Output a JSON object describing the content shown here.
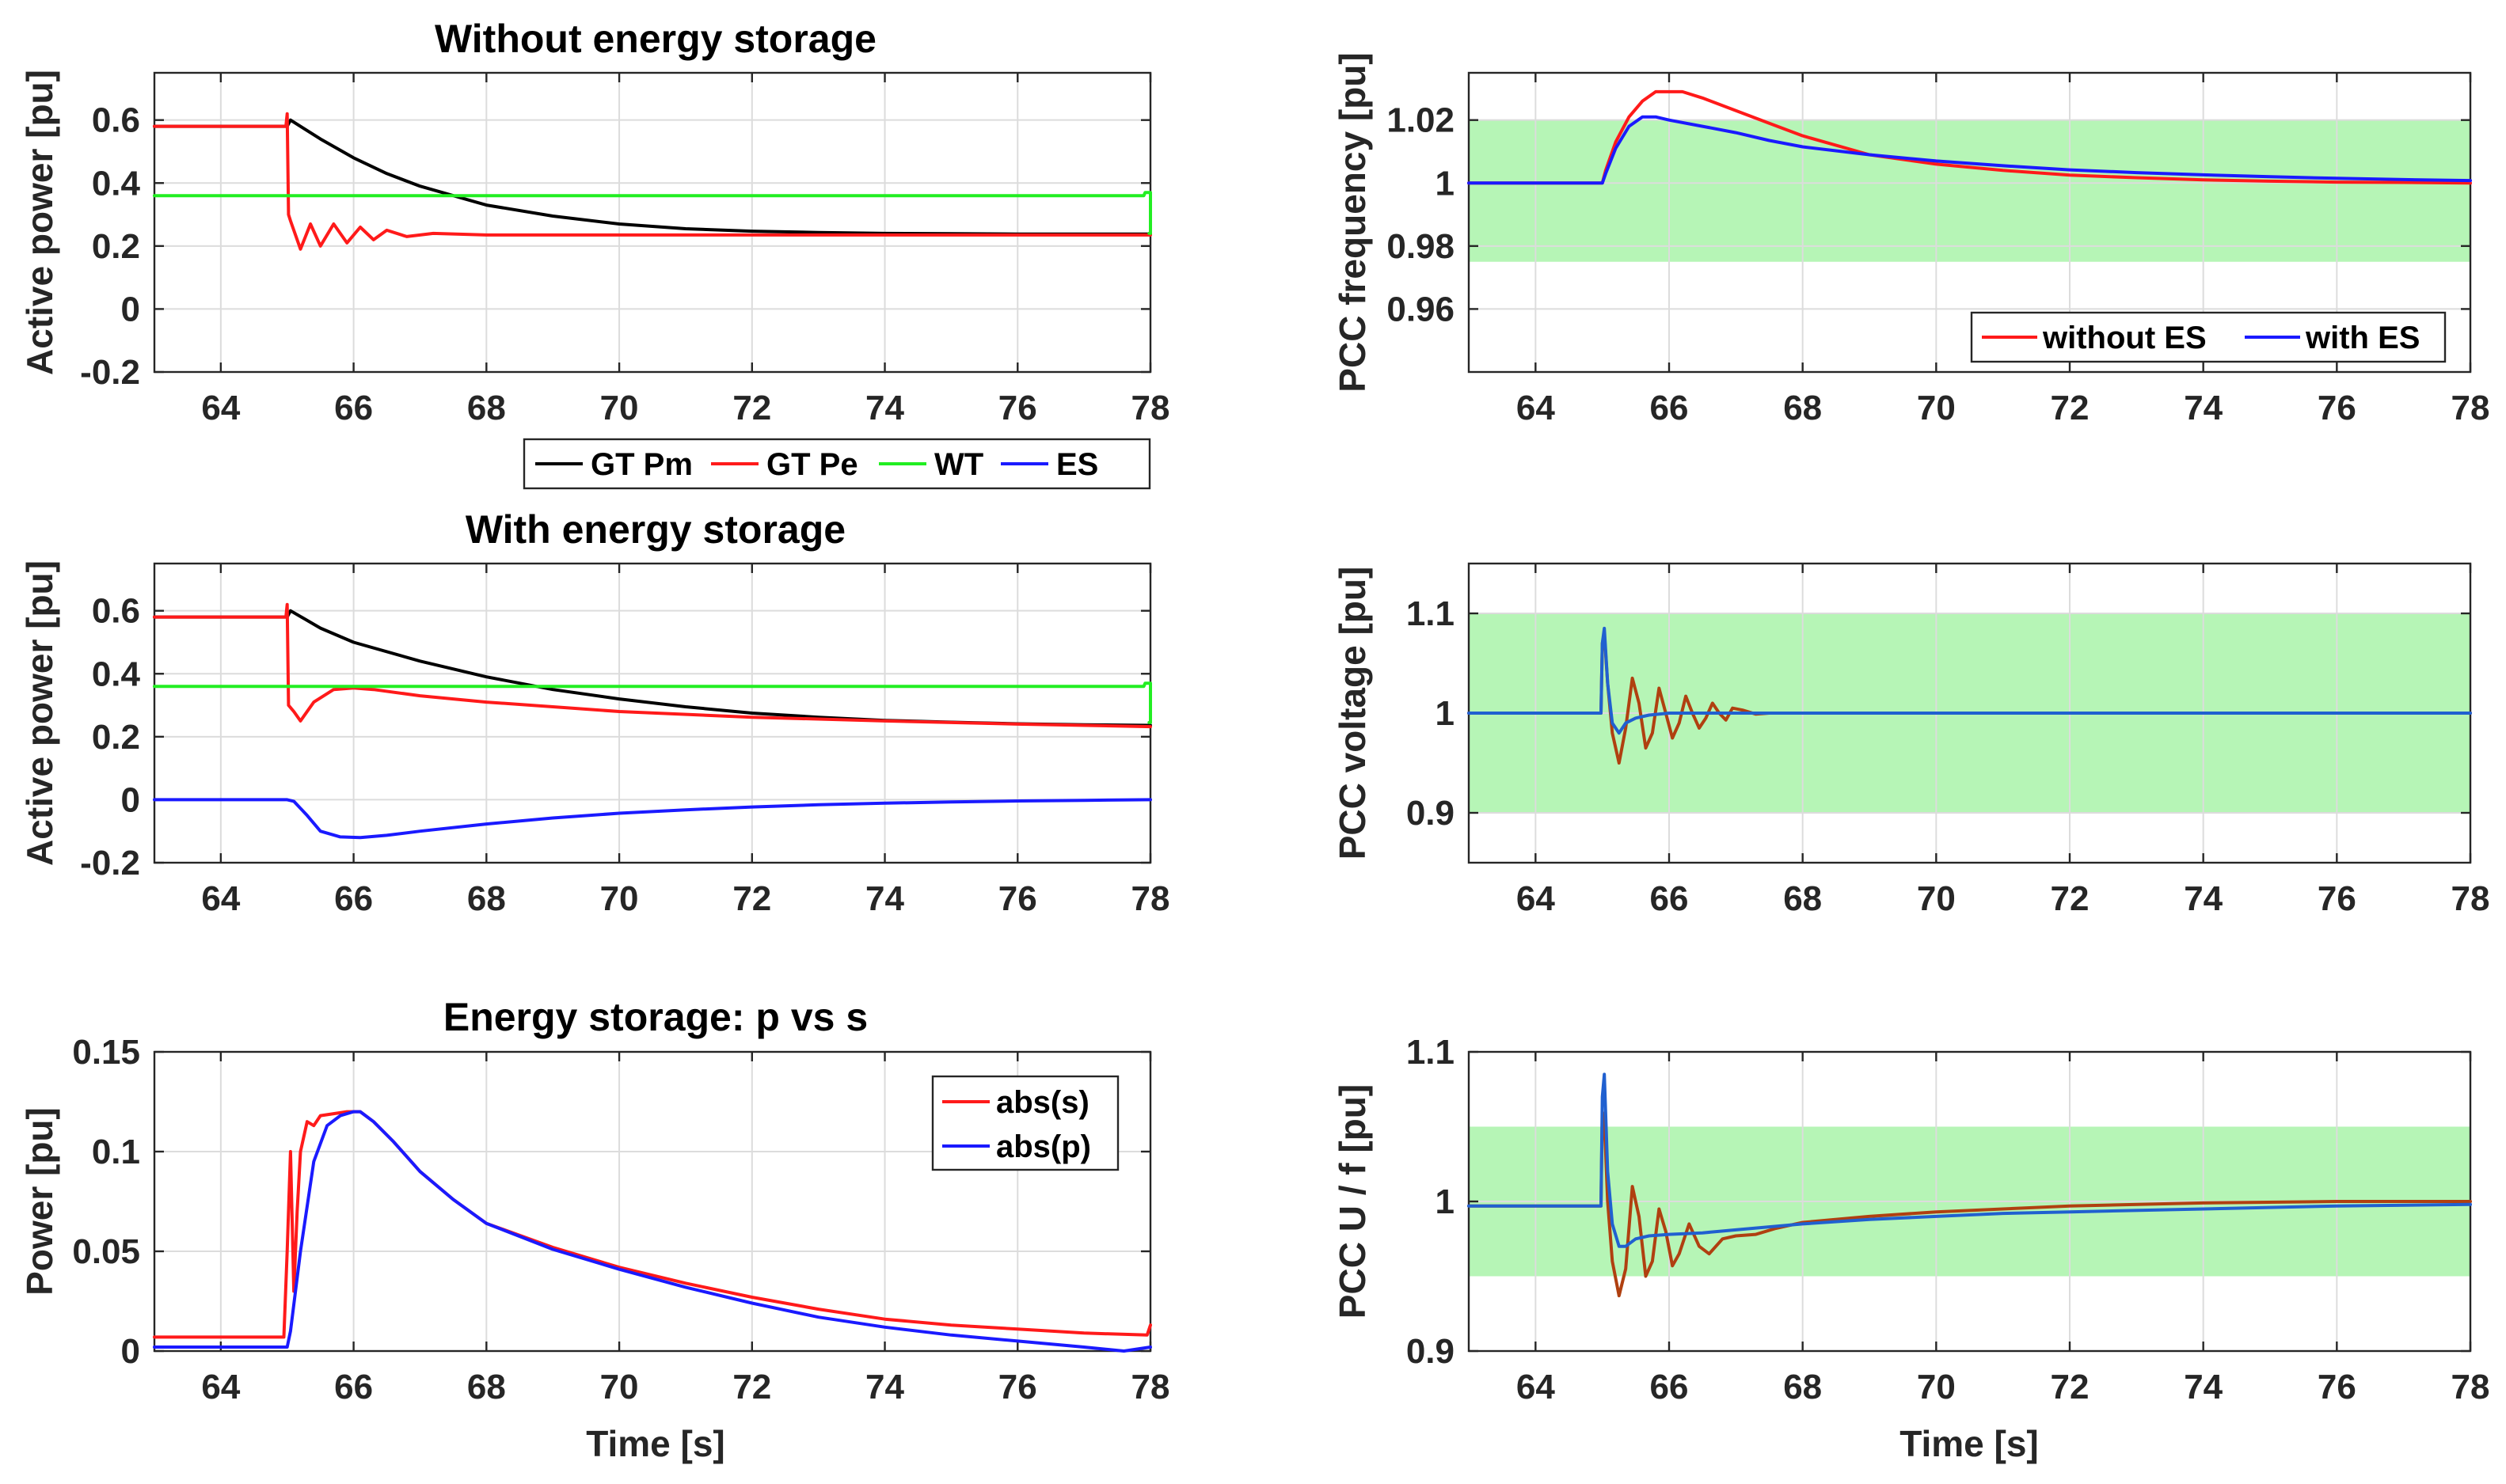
{
  "colors": {
    "black": "#000000",
    "red": "#ff1a1a",
    "green": "#22ee22",
    "blue": "#1a1aff",
    "brown": "#b04010",
    "steelblue": "#2060d0",
    "band": "#b6f5b6"
  },
  "chart_data": [
    {
      "id": "p1",
      "type": "line",
      "title": "Without energy storage",
      "xlabel": "",
      "ylabel": "Active power [pu]",
      "xlim": [
        63,
        78
      ],
      "ylim": [
        -0.2,
        0.75
      ],
      "xticks": [
        64,
        66,
        68,
        70,
        72,
        74,
        76,
        78
      ],
      "xticklabels": [
        "64",
        "66",
        "68",
        "70",
        "72",
        "74",
        "76",
        "78"
      ],
      "yticks": [
        -0.2,
        0,
        0.2,
        0.4,
        0.6
      ],
      "yticklabels": [
        "-0.2",
        "0",
        "0.2",
        "0.4",
        "0.6"
      ],
      "grid": true,
      "legend_position": "below",
      "legend": [
        {
          "name": "GT Pm",
          "color": "#000000"
        },
        {
          "name": "GT Pe",
          "color": "#ff1a1a"
        },
        {
          "name": "WT",
          "color": "#22ee22"
        },
        {
          "name": "ES",
          "color": "#1a1aff"
        }
      ],
      "series": [
        {
          "name": "GT Pm",
          "color": "#000000",
          "x": [
            63,
            65,
            65.05,
            65.5,
            66,
            66.5,
            67,
            68,
            69,
            70,
            71,
            72,
            73,
            74,
            75,
            76,
            77,
            78
          ],
          "y": [
            0.58,
            0.58,
            0.6,
            0.54,
            0.48,
            0.43,
            0.39,
            0.33,
            0.295,
            0.27,
            0.255,
            0.247,
            0.243,
            0.24,
            0.239,
            0.238,
            0.238,
            0.238
          ]
        },
        {
          "name": "GT Pe",
          "color": "#ff1a1a",
          "x": [
            63,
            64.98,
            65.0,
            65.02,
            65.05,
            65.2,
            65.35,
            65.5,
            65.7,
            65.9,
            66.1,
            66.3,
            66.5,
            66.8,
            67.2,
            68,
            70,
            72,
            74,
            76,
            78
          ],
          "y": [
            0.58,
            0.58,
            0.62,
            0.3,
            0.28,
            0.19,
            0.27,
            0.2,
            0.27,
            0.21,
            0.26,
            0.22,
            0.25,
            0.23,
            0.24,
            0.235,
            0.235,
            0.235,
            0.235,
            0.235,
            0.235
          ]
        },
        {
          "name": "WT",
          "color": "#22ee22",
          "x": [
            63,
            77.9,
            77.92,
            78,
            78,
            77.98
          ],
          "y": [
            0.36,
            0.36,
            0.37,
            0.37,
            0.24,
            0.24
          ]
        },
        {
          "name": "ES",
          "color": "#1a1aff",
          "x": [],
          "y": []
        }
      ]
    },
    {
      "id": "p2",
      "type": "line",
      "title": "With energy storage",
      "xlabel": "",
      "ylabel": "Active power [pu]",
      "xlim": [
        63,
        78
      ],
      "ylim": [
        -0.2,
        0.75
      ],
      "xticks": [
        64,
        66,
        68,
        70,
        72,
        74,
        76,
        78
      ],
      "xticklabels": [
        "64",
        "66",
        "68",
        "70",
        "72",
        "74",
        "76",
        "78"
      ],
      "yticks": [
        -0.2,
        0,
        0.2,
        0.4,
        0.6
      ],
      "yticklabels": [
        "-0.2",
        "0",
        "0.2",
        "0.4",
        "0.6"
      ],
      "grid": true,
      "series": [
        {
          "name": "GT Pm",
          "color": "#000000",
          "x": [
            63,
            65,
            65.05,
            65.5,
            66,
            67,
            68,
            69,
            70,
            71,
            72,
            73,
            74,
            75,
            76,
            77,
            78
          ],
          "y": [
            0.58,
            0.58,
            0.6,
            0.545,
            0.5,
            0.44,
            0.39,
            0.35,
            0.32,
            0.295,
            0.275,
            0.262,
            0.252,
            0.246,
            0.241,
            0.238,
            0.236
          ]
        },
        {
          "name": "GT Pe",
          "color": "#ff1a1a",
          "x": [
            63,
            64.98,
            65.0,
            65.02,
            65.1,
            65.2,
            65.4,
            65.7,
            66,
            66.3,
            67,
            68,
            69,
            70,
            72,
            74,
            76,
            78
          ],
          "y": [
            0.58,
            0.58,
            0.62,
            0.3,
            0.28,
            0.25,
            0.31,
            0.35,
            0.355,
            0.35,
            0.33,
            0.31,
            0.295,
            0.28,
            0.262,
            0.25,
            0.24,
            0.232
          ]
        },
        {
          "name": "WT",
          "color": "#22ee22",
          "x": [
            63,
            77.9,
            77.92,
            78,
            78,
            77.98
          ],
          "y": [
            0.36,
            0.36,
            0.37,
            0.37,
            0.245,
            0.245
          ]
        },
        {
          "name": "ES",
          "color": "#1a1aff",
          "x": [
            63,
            65,
            65.1,
            65.3,
            65.5,
            65.8,
            66.1,
            66.5,
            67,
            68,
            69,
            70,
            71,
            72,
            73,
            74,
            75,
            76,
            77,
            78
          ],
          "y": [
            0,
            0,
            -0.005,
            -0.05,
            -0.1,
            -0.118,
            -0.12,
            -0.113,
            -0.1,
            -0.077,
            -0.058,
            -0.043,
            -0.032,
            -0.023,
            -0.016,
            -0.011,
            -0.007,
            -0.004,
            -0.002,
            0
          ]
        }
      ]
    },
    {
      "id": "p3",
      "type": "line",
      "title": "Energy storage: p vs s",
      "xlabel": "Time [s]",
      "ylabel": "Power [pu]",
      "xlim": [
        63,
        78
      ],
      "ylim": [
        0,
        0.15
      ],
      "xticks": [
        64,
        66,
        68,
        70,
        72,
        74,
        76,
        78
      ],
      "xticklabels": [
        "64",
        "66",
        "68",
        "70",
        "72",
        "74",
        "76",
        "78"
      ],
      "yticks": [
        0,
        0.05,
        0.1,
        0.15
      ],
      "yticklabels": [
        "0",
        "0.05",
        "0.1",
        "0.15"
      ],
      "grid": true,
      "legend_position": "top-right",
      "legend": [
        {
          "name": "abs(s)",
          "color": "#ff1a1a"
        },
        {
          "name": "abs(p)",
          "color": "#1a1aff"
        }
      ],
      "series": [
        {
          "name": "abs(s)",
          "color": "#ff1a1a",
          "x": [
            63,
            64.95,
            65.0,
            65.05,
            65.1,
            65.15,
            65.2,
            65.3,
            65.4,
            65.5,
            65.7,
            65.9,
            66.1,
            66.3,
            66.6,
            67,
            67.5,
            68,
            69,
            70,
            71,
            72,
            73,
            74,
            75,
            76,
            77,
            77.95,
            78
          ],
          "y": [
            0.007,
            0.007,
            0.05,
            0.1,
            0.03,
            0.07,
            0.1,
            0.115,
            0.113,
            0.118,
            0.119,
            0.12,
            0.12,
            0.115,
            0.105,
            0.09,
            0.076,
            0.064,
            0.052,
            0.042,
            0.034,
            0.027,
            0.021,
            0.016,
            0.013,
            0.011,
            0.009,
            0.008,
            0.013
          ]
        },
        {
          "name": "abs(p)",
          "color": "#1a1aff",
          "x": [
            63,
            65,
            65.05,
            65.2,
            65.4,
            65.6,
            65.8,
            66.0,
            66.1,
            66.3,
            66.6,
            67,
            67.5,
            68,
            69,
            70,
            71,
            72,
            73,
            74,
            75,
            76,
            77,
            77.6,
            78
          ],
          "y": [
            0.002,
            0.002,
            0.01,
            0.05,
            0.095,
            0.113,
            0.118,
            0.12,
            0.12,
            0.115,
            0.105,
            0.09,
            0.076,
            0.064,
            0.051,
            0.041,
            0.032,
            0.024,
            0.017,
            0.012,
            0.008,
            0.005,
            0.002,
            0.0,
            0.002
          ]
        }
      ]
    },
    {
      "id": "p4",
      "type": "line",
      "title": "",
      "xlabel": "",
      "ylabel": "PCC frequency [pu]",
      "xlim": [
        63,
        78
      ],
      "ylim": [
        0.94,
        1.035
      ],
      "xticks": [
        64,
        66,
        68,
        70,
        72,
        74,
        76,
        78
      ],
      "xticklabels": [
        "64",
        "66",
        "68",
        "70",
        "72",
        "74",
        "76",
        "78"
      ],
      "yticks": [
        0.96,
        0.98,
        1,
        1.02
      ],
      "yticklabels": [
        "0.96",
        "0.98",
        "1",
        "1.02"
      ],
      "grid": true,
      "band": [
        0.975,
        1.02
      ],
      "legend_position": "bottom-right",
      "legend": [
        {
          "name": "without ES",
          "color": "#ff1a1a"
        },
        {
          "name": "with ES",
          "color": "#1a1aff"
        }
      ],
      "series": [
        {
          "name": "without ES",
          "color": "#ff1a1a",
          "x": [
            63,
            65,
            65.05,
            65.2,
            65.4,
            65.6,
            65.8,
            66,
            66.2,
            66.5,
            67,
            67.5,
            68,
            69,
            70,
            71,
            72,
            73,
            74,
            75,
            76,
            77,
            78
          ],
          "y": [
            1.0,
            1.0,
            1.004,
            1.013,
            1.021,
            1.026,
            1.029,
            1.029,
            1.029,
            1.027,
            1.023,
            1.019,
            1.015,
            1.009,
            1.006,
            1.004,
            1.0025,
            1.0017,
            1.001,
            1.0006,
            1.0003,
            1.0002,
            1.0
          ]
        },
        {
          "name": "with ES",
          "color": "#1a1aff",
          "x": [
            63,
            65,
            65.05,
            65.2,
            65.4,
            65.6,
            65.8,
            66,
            66.5,
            67,
            67.5,
            68,
            69,
            70,
            71,
            72,
            73,
            74,
            75,
            76,
            77,
            78
          ],
          "y": [
            1.0,
            1.0,
            1.003,
            1.011,
            1.018,
            1.021,
            1.021,
            1.02,
            1.018,
            1.016,
            1.0135,
            1.0115,
            1.009,
            1.007,
            1.0055,
            1.0042,
            1.0033,
            1.0026,
            1.002,
            1.0015,
            1.0011,
            1.0008
          ]
        }
      ]
    },
    {
      "id": "p5",
      "type": "line",
      "title": "",
      "xlabel": "",
      "ylabel": "PCC voltage [pu]",
      "xlim": [
        63,
        78
      ],
      "ylim": [
        0.85,
        1.15
      ],
      "xticks": [
        64,
        66,
        68,
        70,
        72,
        74,
        76,
        78
      ],
      "xticklabels": [
        "64",
        "66",
        "68",
        "70",
        "72",
        "74",
        "76",
        "78"
      ],
      "yticks": [
        0.9,
        1,
        1.1
      ],
      "yticklabels": [
        "0.9",
        "1",
        "1.1"
      ],
      "grid": true,
      "band": [
        0.9,
        1.1
      ],
      "series": [
        {
          "name": "without ES",
          "color": "#b04010",
          "x": [
            63,
            64.98,
            65.0,
            65.03,
            65.08,
            65.15,
            65.25,
            65.35,
            65.45,
            65.55,
            65.65,
            65.75,
            65.85,
            65.95,
            66.05,
            66.15,
            66.25,
            66.35,
            66.45,
            66.55,
            66.65,
            66.75,
            66.85,
            66.95,
            67.1,
            67.3,
            67.5,
            68,
            70,
            72,
            74,
            76,
            78
          ],
          "y": [
            1.0,
            1.0,
            1.07,
            1.08,
            1.03,
            0.98,
            0.95,
            0.985,
            1.035,
            1.01,
            0.965,
            0.98,
            1.025,
            1.0,
            0.975,
            0.99,
            1.017,
            1.0,
            0.985,
            0.995,
            1.01,
            1.0,
            0.993,
            1.005,
            1.003,
            0.999,
            1.0,
            1.0,
            1.0,
            1.0,
            1.0,
            1.0,
            1.0
          ]
        },
        {
          "name": "with ES",
          "color": "#2060d0",
          "x": [
            63,
            64.98,
            65.0,
            65.03,
            65.08,
            65.15,
            65.25,
            65.35,
            65.5,
            65.7,
            66,
            66.5,
            67,
            68,
            70,
            72,
            74,
            76,
            78
          ],
          "y": [
            1.0,
            1.0,
            1.07,
            1.085,
            1.03,
            0.99,
            0.98,
            0.99,
            0.995,
            0.998,
            1.0,
            1.0,
            1.0,
            1.0,
            1.0,
            1.0,
            1.0,
            1.0,
            1.0
          ]
        }
      ]
    },
    {
      "id": "p6",
      "type": "line",
      "title": "",
      "xlabel": "Time [s]",
      "ylabel": "PCC U / f [pu]",
      "xlim": [
        63,
        78
      ],
      "ylim": [
        0.9,
        1.1
      ],
      "xticks": [
        64,
        66,
        68,
        70,
        72,
        74,
        76,
        78
      ],
      "xticklabels": [
        "64",
        "66",
        "68",
        "70",
        "72",
        "74",
        "76",
        "78"
      ],
      "yticks": [
        0.9,
        1,
        1.1
      ],
      "yticklabels": [
        "0.9",
        "1",
        "1.1"
      ],
      "grid": true,
      "band": [
        0.95,
        1.05
      ],
      "series": [
        {
          "name": "without ES",
          "color": "#b04010",
          "x": [
            63,
            64.98,
            65.0,
            65.03,
            65.08,
            65.15,
            65.25,
            65.35,
            65.45,
            65.55,
            65.65,
            65.75,
            65.85,
            65.95,
            66.05,
            66.15,
            66.3,
            66.45,
            66.6,
            66.8,
            67,
            67.3,
            67.6,
            68,
            69,
            70,
            71,
            72,
            74,
            76,
            78
          ],
          "y": [
            0.997,
            0.997,
            1.06,
            1.055,
            1.0,
            0.96,
            0.937,
            0.955,
            1.01,
            0.99,
            0.95,
            0.96,
            0.995,
            0.98,
            0.957,
            0.965,
            0.985,
            0.97,
            0.965,
            0.975,
            0.977,
            0.978,
            0.982,
            0.986,
            0.99,
            0.993,
            0.995,
            0.997,
            0.999,
            1.0,
            1.0
          ]
        },
        {
          "name": "with ES",
          "color": "#2060d0",
          "x": [
            63,
            64.98,
            65.0,
            65.03,
            65.08,
            65.15,
            65.25,
            65.35,
            65.5,
            65.7,
            66,
            66.5,
            67,
            68,
            69,
            70,
            71,
            72,
            74,
            76,
            78
          ],
          "y": [
            0.997,
            0.997,
            1.07,
            1.085,
            1.02,
            0.985,
            0.97,
            0.97,
            0.975,
            0.977,
            0.978,
            0.979,
            0.981,
            0.985,
            0.988,
            0.99,
            0.992,
            0.993,
            0.995,
            0.997,
            0.998
          ]
        }
      ]
    }
  ]
}
